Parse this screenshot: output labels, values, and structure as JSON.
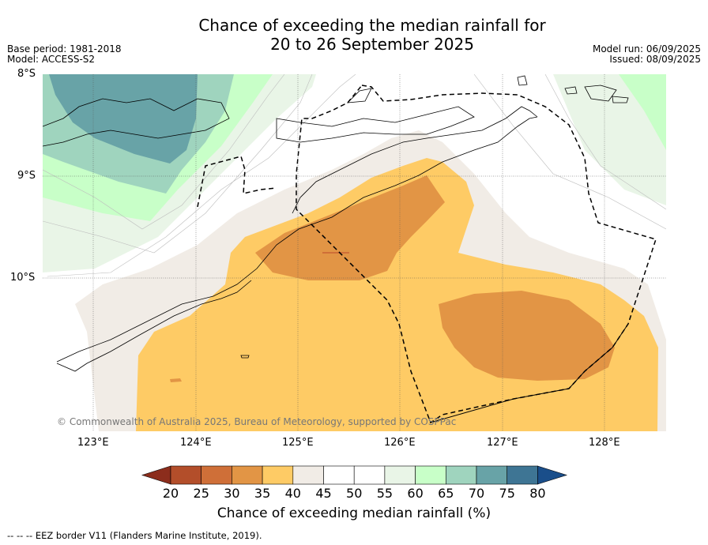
{
  "title_line1": "Chance of exceeding the median rainfall for",
  "title_line2": "20 to 26 September 2025",
  "base_period": "Base period: 1981-2018",
  "model": "Model: ACCESS-S2",
  "model_run": "Model run: 06/09/2025",
  "issued": "Issued: 08/09/2025",
  "lat_labels": [
    "8°S",
    "9°S",
    "10°S"
  ],
  "lon_labels": [
    "123°E",
    "124°E",
    "125°E",
    "126°E",
    "127°E",
    "128°E"
  ],
  "copyright": "© Commonwealth of Australia 2025, Bureau of Meteorology, supported by COSPPac",
  "colorbar": {
    "label": "Chance of exceeding median rainfall (%)",
    "ticks": [
      "20",
      "25",
      "30",
      "35",
      "40",
      "45",
      "50",
      "55",
      "60",
      "65",
      "70",
      "75",
      "80"
    ],
    "colors": [
      "#8c2d1c",
      "#b34e2a",
      "#cf6f38",
      "#e29545",
      "#fecb65",
      "#f1ece6",
      "#ffffff",
      "#ffffff",
      "#e9f5e7",
      "#c8ffc8",
      "#9fd4be",
      "#68a3a7",
      "#3e7594",
      "#1a4e8a"
    ]
  },
  "footer": "-- -- -- EEZ border V11 (Flanders Marine Institute, 2019)."
}
